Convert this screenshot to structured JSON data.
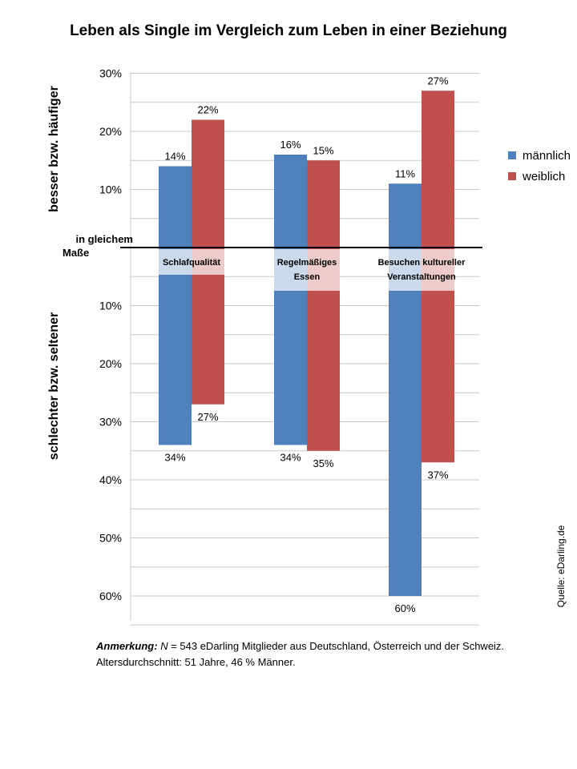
{
  "title": "Leben als Single im Vergleich zum Leben in einer Beziehung",
  "y_label_upper": "besser bzw. häufiger",
  "y_label_lower": "schlechter bzw. seltener",
  "baseline_label_line1": "in gleichem",
  "baseline_label_line2": "Maße",
  "source": "Quelle: eDarling.de",
  "note": {
    "lead": "Anmerkung:",
    "n_symbol": "N",
    "text": " = 543 eDarling Mitglieder aus Deutschland, Österreich und der Schweiz. Altersdurchschnitt: 51 Jahre, 46 % Männer."
  },
  "colors": {
    "male": "#4F81BD",
    "female": "#C0504D"
  },
  "chart_data": {
    "type": "bar",
    "title": "Leben als Single im Vergleich zum Leben in einer Beziehung",
    "categories": [
      "Schlafqualität",
      "Regelmäßiges Essen",
      "Besuchen kultureller Veranstaltungen"
    ],
    "category_label_lines": [
      [
        "Schlafqualität"
      ],
      [
        "Regelmäßiges",
        "Essen"
      ],
      [
        "Besuchen kultureller",
        "Veranstaltungen"
      ]
    ],
    "series": [
      {
        "name": "männlich",
        "better": [
          14,
          16,
          11
        ],
        "worse": [
          34,
          34,
          60
        ]
      },
      {
        "name": "weiblich",
        "better": [
          22,
          15,
          27
        ],
        "worse": [
          27,
          35,
          37
        ]
      }
    ],
    "y_ticks_upper": [
      "30%",
      "20%",
      "10%"
    ],
    "y_ticks_lower": [
      "10%",
      "20%",
      "30%",
      "40%",
      "50%",
      "60%"
    ],
    "ylim": [
      -65,
      30
    ],
    "legend_position": "right",
    "grid": true
  }
}
